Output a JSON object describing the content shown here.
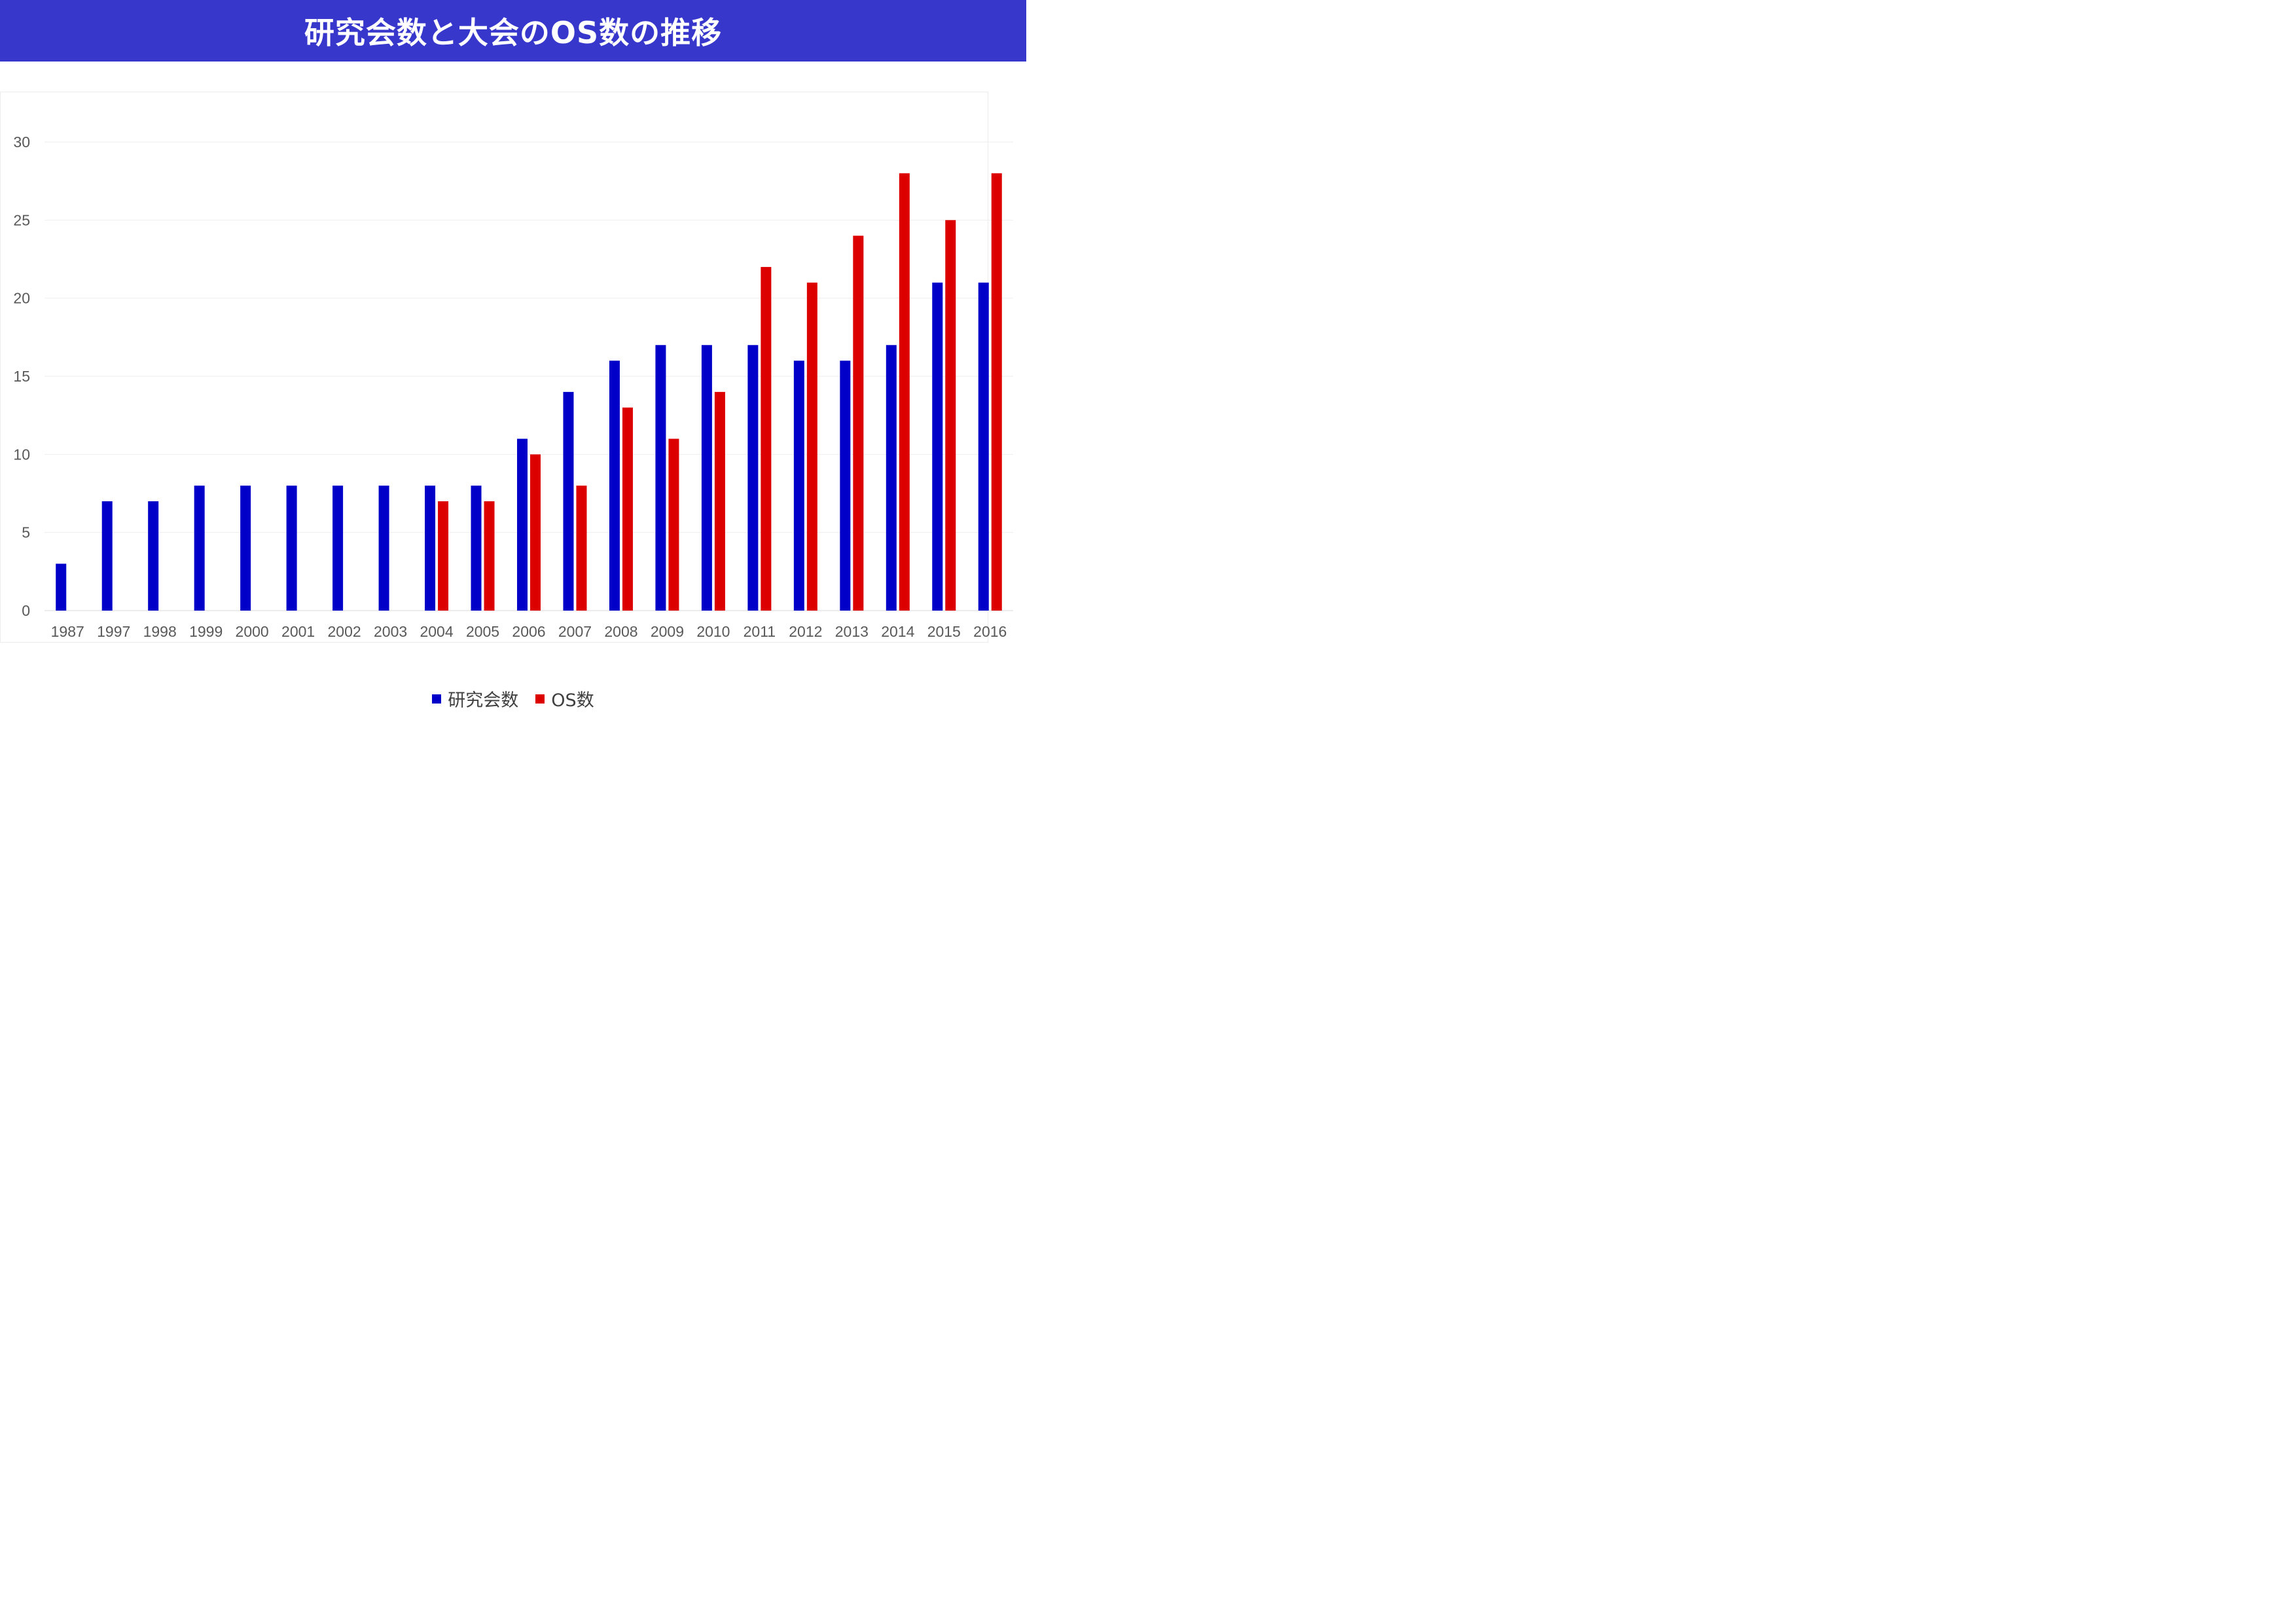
{
  "title": "研究会数と大会のOS数の推移",
  "colors": {
    "title_bg": "#3737cc",
    "series_1": "#0000c8",
    "series_2": "#dd0000",
    "grid": "#eeeeee",
    "tick_text": "#595959"
  },
  "chart_data": {
    "type": "bar",
    "title": "研究会数と大会のOS数の推移",
    "xlabel": "",
    "ylabel": "",
    "categories": [
      "1987",
      "1997",
      "1998",
      "1999",
      "2000",
      "2001",
      "2002",
      "2003",
      "2004",
      "2005",
      "2006",
      "2007",
      "2008",
      "2009",
      "2010",
      "2011",
      "2012",
      "2013",
      "2014",
      "2015",
      "2016"
    ],
    "series": [
      {
        "name": "研究会数",
        "color": "#0000c8",
        "values": [
          3,
          7,
          7,
          8,
          8,
          8,
          8,
          8,
          8,
          8,
          11,
          14,
          16,
          17,
          17,
          17,
          16,
          16,
          17,
          21,
          21
        ]
      },
      {
        "name": "OS数",
        "color": "#dd0000",
        "values": [
          null,
          null,
          null,
          null,
          null,
          null,
          null,
          null,
          7,
          7,
          10,
          8,
          13,
          11,
          14,
          22,
          21,
          24,
          28,
          25,
          28
        ]
      }
    ],
    "ylim": [
      0,
      30
    ],
    "yticks": [
      0,
      5,
      10,
      15,
      20,
      25,
      30
    ],
    "grid": true,
    "legend_position": "bottom"
  }
}
